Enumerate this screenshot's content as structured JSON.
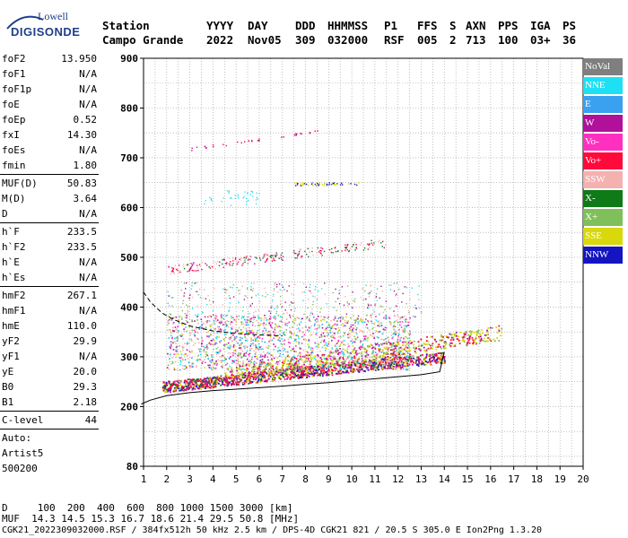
{
  "logo": {
    "line1": "Lowell",
    "line2": "DIGISONDE"
  },
  "header": {
    "labels": [
      "Station",
      "YYYY",
      "DAY",
      "DDD",
      "HHMMSS",
      "P1",
      "FFS",
      "S",
      "AXN",
      "PPS",
      "IGA",
      "PS"
    ],
    "values": [
      "Campo Grande",
      "2022",
      "Nov05",
      "309",
      "032000",
      "RSF",
      "005",
      "2",
      "713",
      "100",
      "03+",
      "36"
    ]
  },
  "params": {
    "g1": [
      {
        "name": "foF2",
        "value": "13.950"
      },
      {
        "name": "foF1",
        "value": "N/A"
      },
      {
        "name": "foF1p",
        "value": "N/A"
      },
      {
        "name": "foE",
        "value": "N/A"
      },
      {
        "name": "foEp",
        "value": "0.52"
      },
      {
        "name": "fxI",
        "value": "14.30"
      },
      {
        "name": "foEs",
        "value": "N/A"
      },
      {
        "name": "fmin",
        "value": "1.80"
      }
    ],
    "g2": [
      {
        "name": "MUF(D)",
        "value": "50.83"
      },
      {
        "name": "M(D)",
        "value": "3.64"
      },
      {
        "name": "D",
        "value": "N/A"
      }
    ],
    "g3": [
      {
        "name": "h`F",
        "value": "233.5"
      },
      {
        "name": "h`F2",
        "value": "233.5"
      },
      {
        "name": "h`E",
        "value": "N/A"
      },
      {
        "name": "h`Es",
        "value": "N/A"
      }
    ],
    "g4": [
      {
        "name": "hmF2",
        "value": "267.1"
      },
      {
        "name": "hmF1",
        "value": "N/A"
      },
      {
        "name": "hmE",
        "value": "110.0"
      },
      {
        "name": "yF2",
        "value": "29.9"
      },
      {
        "name": "yF1",
        "value": "N/A"
      },
      {
        "name": "yE",
        "value": "20.0"
      },
      {
        "name": "B0",
        "value": "29.3"
      },
      {
        "name": "B1",
        "value": "2.18"
      }
    ],
    "clevel": {
      "name": "C-level",
      "value": "44"
    },
    "auto": [
      "Auto:",
      "Artist5",
      "500200"
    ]
  },
  "legend": [
    {
      "label": "NoVal",
      "color": "#7f7f7f"
    },
    {
      "label": "NNE",
      "color": "#1ee0f5"
    },
    {
      "label": "E",
      "color": "#3aa0f0"
    },
    {
      "label": "W",
      "color": "#b0109a"
    },
    {
      "label": "Vo-",
      "color": "#ff30c0"
    },
    {
      "label": "Vo+",
      "color": "#ff0a3a"
    },
    {
      "label": "SSW",
      "color": "#f5b0b0"
    },
    {
      "label": "X-",
      "color": "#0f7a18"
    },
    {
      "label": "X+",
      "color": "#7fc05a"
    },
    {
      "label": "SSE",
      "color": "#d8d80a"
    },
    {
      "label": "NNW",
      "color": "#1414c0"
    }
  ],
  "footer": {
    "d_line": "D     100  200  400  600  800 1000 1500 3000 [km]",
    "muf_line": "MUF  14.3 14.5 15.3 16.7 18.6 21.4 29.5 50.8 [MHz]",
    "file_line": "CGK21_2022309032000.RSF / 384fx512h 50 kHz 2.5 km / DPS-4D CGK21 821 / 20.5 S 305.0 E Ion2Png 1.3.20"
  },
  "chart_data": {
    "type": "scatter",
    "xlim": [
      1,
      20
    ],
    "ylim": [
      80,
      900
    ],
    "xticks": [
      1,
      2,
      3,
      4,
      5,
      6,
      7,
      8,
      9,
      10,
      11,
      12,
      13,
      14,
      15,
      16,
      17,
      18,
      19,
      20
    ],
    "yticks": [
      80,
      200,
      300,
      400,
      500,
      600,
      700,
      800,
      900
    ],
    "grid": true,
    "profile_curve": {
      "x": [
        0.9,
        1.3,
        2,
        3,
        4,
        5,
        6,
        7,
        8,
        9,
        10,
        11,
        12,
        13,
        13.8,
        14.0
      ],
      "y": [
        205,
        213,
        222,
        228,
        232,
        235,
        238,
        241,
        245,
        248,
        252,
        256,
        260,
        264,
        270,
        310
      ]
    },
    "dashed_curve": {
      "x": [
        1.0,
        1.3,
        1.8,
        2.3,
        3,
        4,
        5,
        6,
        7
      ],
      "y": [
        430,
        410,
        388,
        375,
        362,
        352,
        347,
        344,
        342
      ]
    },
    "echo_traces": [
      {
        "name": "F2 O-trace",
        "x": [
          1.8,
          14.0
        ],
        "y": [
          240,
          300
        ]
      },
      {
        "name": "F2 X-trace",
        "x": [
          4.5,
          16.5
        ],
        "y": [
          265,
          350
        ]
      },
      {
        "name": "multi-hop 1",
        "x": [
          2,
          11.5
        ],
        "y": [
          475,
          530
        ]
      },
      {
        "name": "multi-hop 2",
        "x": [
          3,
          8.5
        ],
        "y": [
          718,
          755
        ]
      },
      {
        "name": "multi-hop 3",
        "x": [
          7.5,
          10.3
        ],
        "y": [
          647,
          650
        ]
      }
    ]
  }
}
